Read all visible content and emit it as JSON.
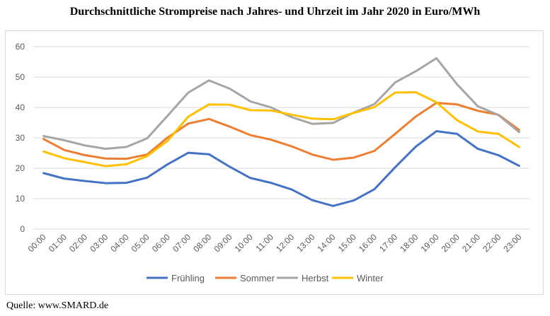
{
  "title": "Durchschnittliche Strompreise nach Jahres- und Uhrzeit im Jahr 2020 in Euro/MWh",
  "source": "Quelle: www.SMARD.de",
  "chart_data": {
    "type": "line",
    "title": "Durchschnittliche Strompreise nach Jahres- und Uhrzeit im Jahr 2020 in Euro/MWh",
    "xlabel": "",
    "ylabel": "",
    "ylim": [
      0,
      60
    ],
    "yticks": [
      0,
      10,
      20,
      30,
      40,
      50,
      60
    ],
    "grid": true,
    "legend_position": "bottom",
    "categories": [
      "00:00",
      "01:00",
      "02:00",
      "03:00",
      "04:00",
      "05:00",
      "06:00",
      "07:00",
      "08:00",
      "09:00",
      "10:00",
      "11:00",
      "12:00",
      "13:00",
      "14:00",
      "15:00",
      "16:00",
      "17:00",
      "18:00",
      "19:00",
      "20:00",
      "21:00",
      "22:00",
      "23:00"
    ],
    "series": [
      {
        "name": "Frühling",
        "color": "#4472c4",
        "values": [
          18.4,
          16.6,
          15.8,
          15.1,
          15.2,
          16.9,
          21.3,
          25.1,
          24.6,
          20.5,
          16.8,
          15.2,
          13.0,
          9.5,
          7.6,
          9.4,
          13.1,
          20.3,
          27.1,
          32.2,
          31.3,
          26.4,
          24.3,
          20.8
        ]
      },
      {
        "name": "Sommer",
        "color": "#ed7d31",
        "values": [
          29.6,
          26.0,
          24.3,
          23.2,
          23.1,
          24.5,
          30.1,
          34.7,
          36.2,
          33.7,
          30.9,
          29.4,
          27.2,
          24.5,
          22.8,
          23.5,
          25.7,
          31.3,
          37.0,
          41.5,
          41.0,
          38.9,
          37.6,
          32.6
        ]
      },
      {
        "name": "Herbst",
        "color": "#a5a5a5",
        "values": [
          30.6,
          29.2,
          27.5,
          26.4,
          27.0,
          29.8,
          37.3,
          44.9,
          48.9,
          46.2,
          42.0,
          40.0,
          36.8,
          34.6,
          34.9,
          38.3,
          41.1,
          48.2,
          51.9,
          56.2,
          47.6,
          40.4,
          37.5,
          31.9
        ]
      },
      {
        "name": "Winter",
        "color": "#ffc000",
        "values": [
          25.5,
          23.3,
          22.0,
          20.7,
          21.3,
          24.0,
          29.0,
          37.0,
          41.0,
          40.9,
          39.1,
          39.0,
          37.6,
          36.3,
          36.1,
          38.2,
          40.1,
          44.9,
          45.0,
          41.7,
          35.8,
          32.1,
          31.3,
          27.0
        ]
      }
    ]
  }
}
